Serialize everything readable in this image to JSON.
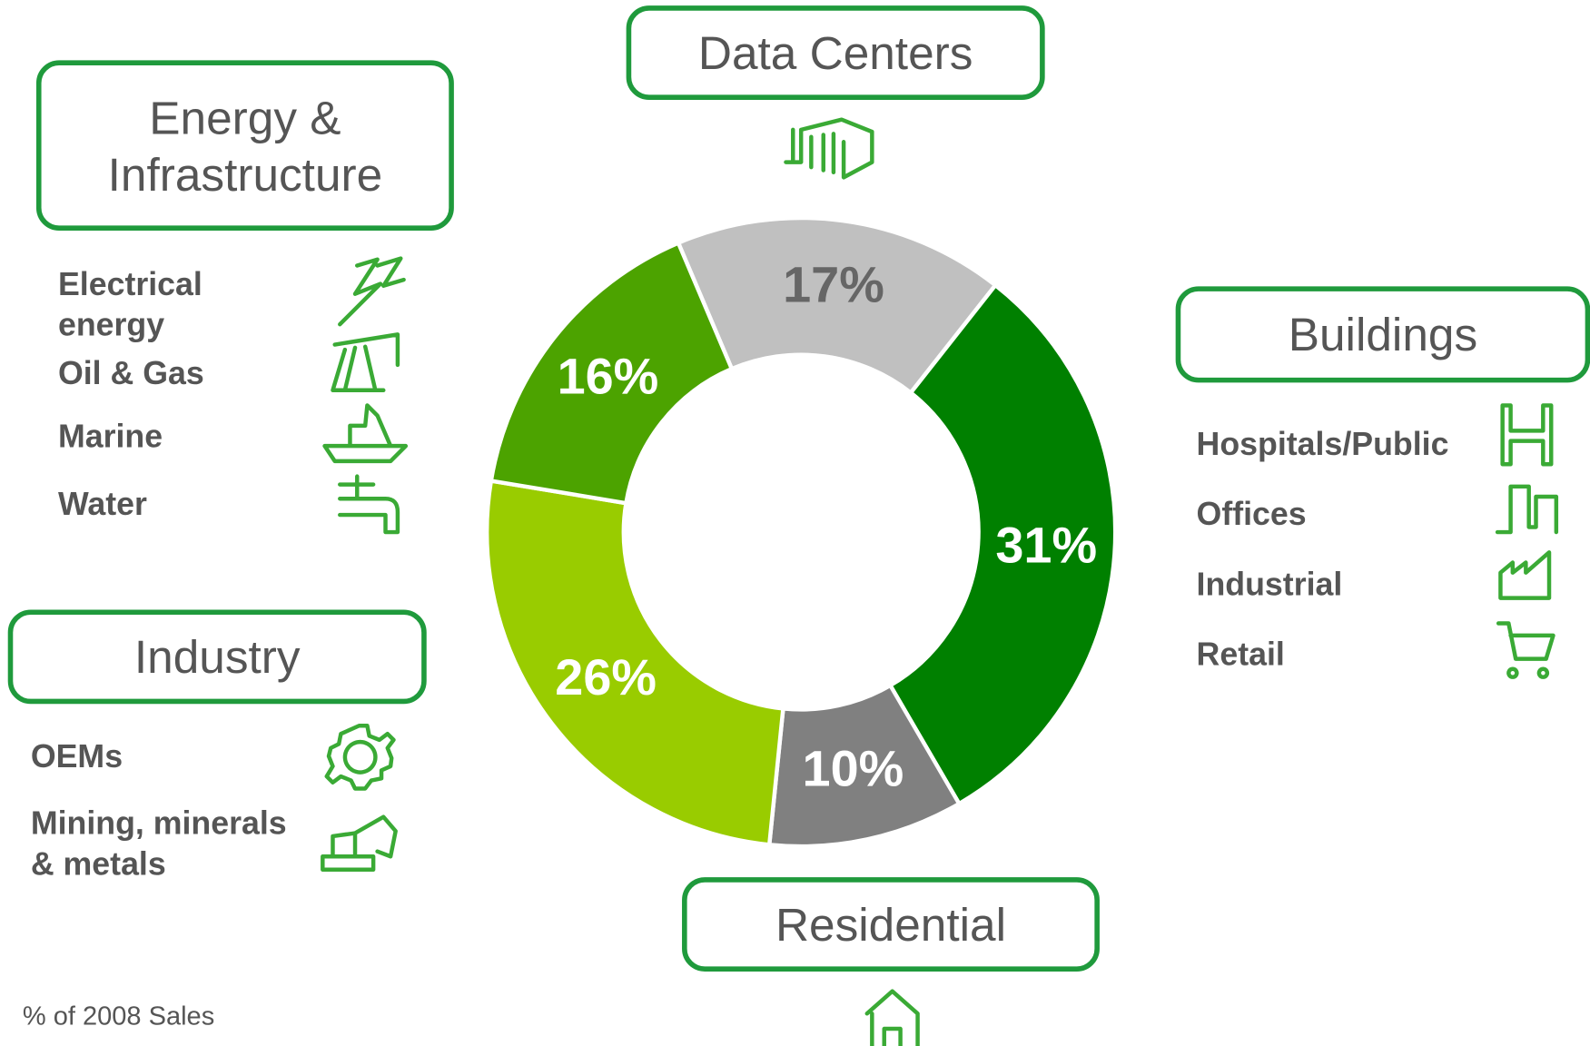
{
  "chart_data": {
    "type": "pie",
    "categories": [
      "Data Centers",
      "Buildings",
      "Residential",
      "Industry",
      "Energy & Infrastructure"
    ],
    "values": [
      17,
      31,
      10,
      26,
      16
    ],
    "value_labels": [
      "17%",
      "31%",
      "10%",
      "26%",
      "16%"
    ],
    "colors": [
      "#c0c0c0",
      "#008000",
      "#808080",
      "#99cc00",
      "#4ca300"
    ],
    "value_label_colors": [
      "#666666",
      "#ffffff",
      "#ffffff",
      "#ffffff",
      "#ffffff"
    ],
    "subcategories": [
      [],
      [
        "Hospitals/Public",
        "Offices",
        "Industrial",
        "Retail"
      ],
      [],
      [
        "OEMs",
        "Mining, minerals & metals"
      ],
      [
        "Electrical energy",
        "Oil & Gas",
        "Marine",
        "Water"
      ]
    ],
    "footnote": "% of 2008 Sales"
  }
}
